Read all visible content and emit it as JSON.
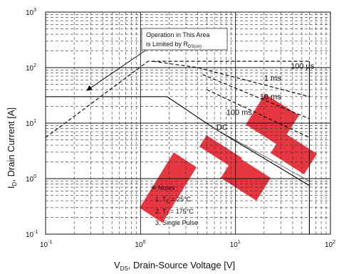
{
  "chart_data": {
    "type": "line",
    "xscale": "log",
    "yscale": "log",
    "xlim": [
      0.1,
      100
    ],
    "ylim": [
      0.1,
      1000
    ],
    "xlabel": {
      "main": "V",
      "sub": "DS",
      "rest": ", Drain-Source Voltage [V]"
    },
    "ylabel": {
      "main": "I",
      "sub": "D",
      "rest": ", Drain Current [A]"
    },
    "x_ticks": [
      {
        "base": "10",
        "exp": "-1",
        "value": 0.1
      },
      {
        "base": "10",
        "exp": "0",
        "value": 1
      },
      {
        "base": "10",
        "exp": "1",
        "value": 10
      },
      {
        "base": "10",
        "exp": "2",
        "value": 100
      }
    ],
    "y_ticks": [
      {
        "base": "10",
        "exp": "-1",
        "value": 0.1
      },
      {
        "base": "10",
        "exp": "0",
        "value": 1
      },
      {
        "base": "10",
        "exp": "1",
        "value": 10
      },
      {
        "base": "10",
        "exp": "2",
        "value": 100
      },
      {
        "base": "10",
        "exp": "3",
        "value": 1000
      }
    ],
    "grid": true,
    "series": [
      {
        "name": "100 µs",
        "style": "dashed",
        "points": [
          [
            0.1,
            5.5
          ],
          [
            1.2,
            130
          ],
          [
            60,
            130
          ]
        ]
      },
      {
        "name": "1 ms",
        "style": "dashed",
        "points": [
          [
            1.35,
            130
          ],
          [
            4,
            100
          ],
          [
            60,
            30
          ]
        ]
      },
      {
        "name": "10 ms",
        "style": "dashed",
        "points": [
          [
            4.5,
            75
          ],
          [
            60,
            12
          ]
        ]
      },
      {
        "name": "100 ms",
        "style": "dashed",
        "points": [
          [
            5,
            40
          ],
          [
            60,
            5.5
          ]
        ]
      },
      {
        "name": "DC",
        "style": "solid",
        "points": [
          [
            0.1,
            30
          ],
          [
            1.9,
            30
          ],
          [
            6,
            8
          ],
          [
            60,
            0.75
          ]
        ]
      },
      {
        "name": "DC",
        "style": "solid-thin",
        "points": [
          [
            6,
            8
          ],
          [
            60,
            0.9
          ]
        ]
      }
    ],
    "vdss_limit": 60,
    "annotations": {
      "rds_box": {
        "line1": "Operation in This Area",
        "line2": "is Limited by R",
        "line2_sub": "DS(on)"
      },
      "labels": [
        {
          "text": "100 µs",
          "x": 38,
          "y": 95
        },
        {
          "text": "1 ms",
          "x": 20,
          "y": 58
        },
        {
          "text": "10 ms",
          "x": 18,
          "y": 27
        },
        {
          "text": "100 ms",
          "x": 8,
          "y": 14
        },
        {
          "text": "DC",
          "x": 6.3,
          "y": 7.5
        }
      ],
      "notes": {
        "title": "※ Notes :",
        "items": [
          {
            "prefix": "1. T",
            "sub": "C",
            "suffix": " = 25°C"
          },
          {
            "prefix": "2. T",
            "sub": "J",
            "suffix": " = 175°C"
          },
          {
            "prefix": "3. Single Pulse",
            "sub": "",
            "suffix": ""
          }
        ]
      }
    }
  },
  "watermark": {
    "text": "EPM",
    "color": "#e0101f"
  }
}
